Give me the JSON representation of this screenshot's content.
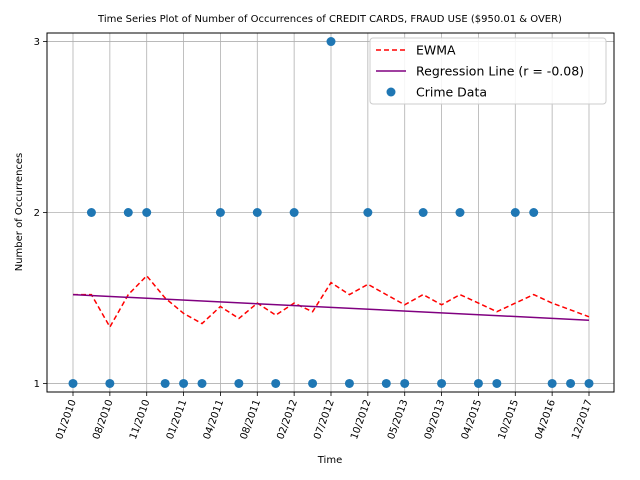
{
  "chart_data": {
    "type": "scatter",
    "title": "Time Series Plot of Number of Occurrences of CREDIT CARDS, FRAUD USE ($950.01 & OVER)",
    "xlabel": "Time",
    "ylabel": "Number of Occurrences",
    "x_ticks": [
      "01/2010",
      "08/2010",
      "11/2010",
      "01/2011",
      "04/2011",
      "08/2011",
      "02/2012",
      "07/2012",
      "10/2012",
      "05/2013",
      "09/2013",
      "04/2015",
      "10/2015",
      "04/2016",
      "12/2017"
    ],
    "y_ticks": [
      1,
      2,
      3
    ],
    "ylim": [
      0.95,
      3.05
    ],
    "grid": true,
    "legend_position": "upper-right",
    "series": [
      {
        "name": "Crime Data",
        "kind": "scatter",
        "color": "#1f77b4",
        "x": [
          0,
          0.5,
          1,
          1.5,
          2,
          2.5,
          3,
          3.5,
          4,
          4.5,
          5,
          5.5,
          6,
          6.5,
          7,
          7.5,
          8,
          8.5,
          9,
          9.5,
          10,
          10.5,
          11,
          11.5,
          12,
          12.5,
          13,
          13.5,
          14
        ],
        "y": [
          1,
          2,
          1,
          2,
          2,
          1,
          1,
          1,
          2,
          1,
          2,
          1,
          2,
          1,
          3,
          1,
          2,
          1,
          1,
          2,
          1,
          2,
          1,
          1,
          2,
          2,
          1,
          1,
          1
        ]
      },
      {
        "name": "EWMA",
        "kind": "line",
        "style": "dashed",
        "color": "#ff0000",
        "x": [
          0,
          0.5,
          1,
          1.5,
          2,
          2.5,
          3,
          3.5,
          4,
          4.5,
          5,
          5.5,
          6,
          6.5,
          7,
          7.5,
          8,
          8.5,
          9,
          9.5,
          10,
          10.5,
          11,
          11.5,
          12,
          12.5,
          13,
          13.5,
          14
        ],
        "y": [
          1.52,
          1.52,
          1.33,
          1.52,
          1.63,
          1.5,
          1.41,
          1.35,
          1.45,
          1.38,
          1.47,
          1.4,
          1.47,
          1.42,
          1.59,
          1.52,
          1.58,
          1.52,
          1.46,
          1.52,
          1.46,
          1.52,
          1.47,
          1.42,
          1.47,
          1.52,
          1.47,
          1.43,
          1.39
        ]
      },
      {
        "name": "Regression Line (r = -0.08)",
        "kind": "line",
        "style": "solid",
        "color": "#800080",
        "x": [
          0,
          14
        ],
        "y": [
          1.52,
          1.37
        ]
      }
    ],
    "legend_order": [
      "EWMA",
      "Regression Line (r = -0.08)",
      "Crime Data"
    ]
  }
}
